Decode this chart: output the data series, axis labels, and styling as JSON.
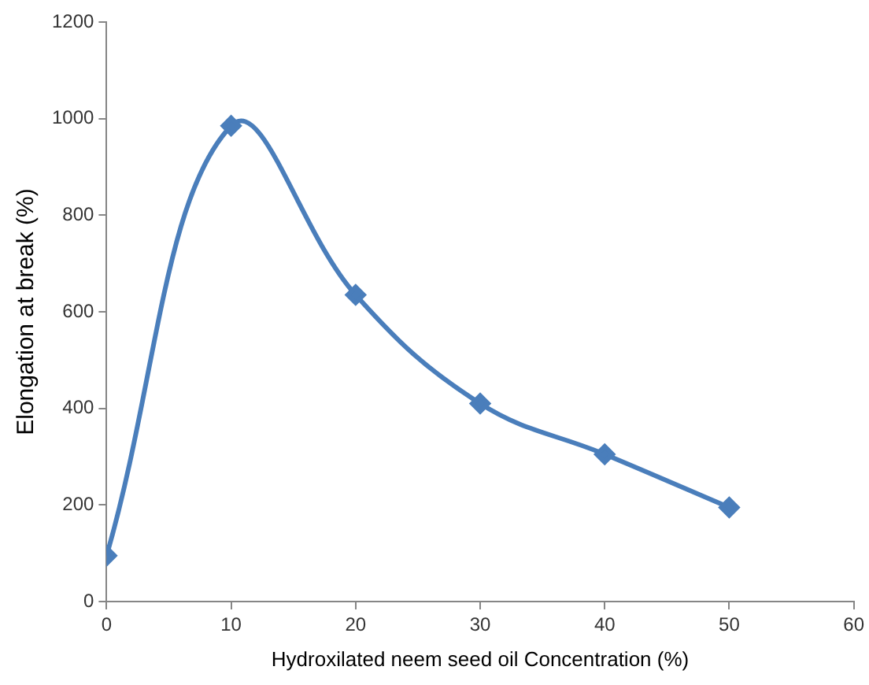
{
  "chart_data": {
    "type": "line",
    "xlabel": "Hydroxilated neem seed oil Concentration (%)",
    "ylabel": "Elongation at break (%)",
    "x": [
      0,
      10,
      20,
      30,
      40,
      50
    ],
    "series": [
      {
        "color": "#4a7ebb",
        "values": [
          95,
          985,
          635,
          410,
          305,
          195
        ]
      }
    ],
    "xlim": [
      0,
      60
    ],
    "xticks": [
      0,
      10,
      20,
      30,
      40,
      50,
      60
    ],
    "ylim": [
      0,
      1200
    ],
    "yticks": [
      0,
      200,
      400,
      600,
      800,
      1000,
      1200
    ],
    "grid": false,
    "legend": false,
    "marker": "diamond",
    "line_style": "solid"
  }
}
